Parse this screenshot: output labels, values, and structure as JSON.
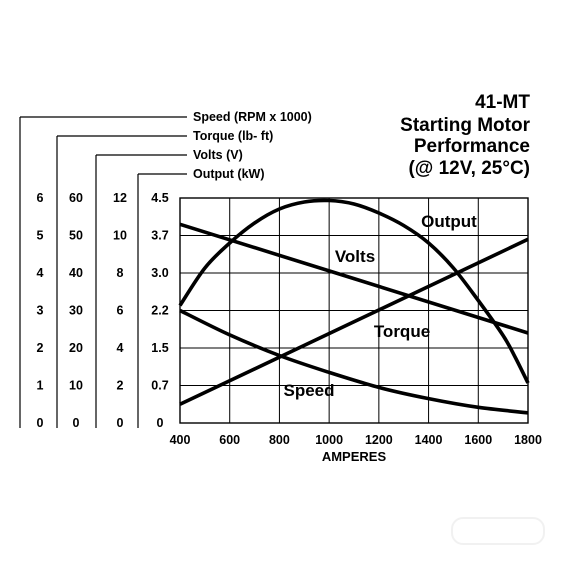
{
  "title_lines": [
    "41-MT",
    "Starting Motor",
    "Performance",
    "(@ 12V, 25°C)"
  ],
  "colors": {
    "line": "#000000",
    "background": "#ffffff"
  },
  "chart_data": {
    "type": "line",
    "title": "41-MT Starting Motor Performance (@ 12V, 25°C)",
    "xlabel": "AMPERES",
    "x_ticks": [
      400,
      600,
      800,
      1000,
      1200,
      1400,
      1600,
      1800
    ],
    "xlim": [
      400,
      1800
    ],
    "grid": true,
    "y_scales": [
      {
        "key": "speed",
        "title": "Speed (RPM x 1000)",
        "ticks": [
          "0",
          "1",
          "2",
          "3",
          "4",
          "5",
          "6"
        ],
        "range": [
          0,
          6
        ]
      },
      {
        "key": "torque",
        "title": "Torque (lb- ft)",
        "ticks": [
          "0",
          "10",
          "20",
          "30",
          "40",
          "50",
          "60"
        ],
        "range": [
          0,
          60
        ]
      },
      {
        "key": "volts",
        "title": "Volts (V)",
        "ticks": [
          "0",
          "2",
          "4",
          "6",
          "8",
          "10",
          "12"
        ],
        "range": [
          0,
          12
        ]
      },
      {
        "key": "output",
        "title": "Output (kW)",
        "ticks": [
          "0",
          "0.7",
          "1.5",
          "2.2",
          "3.0",
          "3.7",
          "4.5"
        ],
        "range": [
          0,
          4.5
        ]
      }
    ],
    "series": [
      {
        "name": "Speed",
        "scale": "speed",
        "x": [
          400,
          600,
          800,
          1000,
          1200,
          1400,
          1600,
          1800
        ],
        "y": [
          3.0,
          2.35,
          1.8,
          1.35,
          0.95,
          0.65,
          0.42,
          0.27
        ]
      },
      {
        "name": "Torque",
        "scale": "torque",
        "x": [
          400,
          1800
        ],
        "y": [
          5,
          49
        ]
      },
      {
        "name": "Volts",
        "scale": "volts",
        "x": [
          400,
          1800
        ],
        "y": [
          10.6,
          4.8
        ]
      },
      {
        "name": "Output",
        "scale": "output",
        "x": [
          400,
          500,
          600,
          700,
          800,
          900,
          1000,
          1100,
          1200,
          1300,
          1400,
          1500,
          1600,
          1700,
          1750,
          1800
        ],
        "y": [
          2.35,
          3.1,
          3.6,
          4.0,
          4.28,
          4.42,
          4.45,
          4.38,
          4.2,
          3.95,
          3.6,
          3.1,
          2.45,
          1.75,
          1.3,
          0.8
        ]
      }
    ]
  }
}
